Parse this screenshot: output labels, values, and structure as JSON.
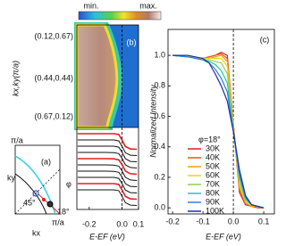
{
  "chart_data": [
    {
      "type": "edc",
      "label": "(b)",
      "colorbar_labels": [
        "min.",
        "max."
      ],
      "k_labels": [
        "(0.12,0.67)",
        "(0.44,0.44)",
        "(0.67,0.12)"
      ],
      "ylabel": "kx,ky(π/a)",
      "xlabel": "E-EF (eV)",
      "xlim": [
        -0.275,
        0.1
      ],
      "xticks": [
        -0.2,
        {
          "value": 0,
          "label": "0.0"
        },
        0.1
      ],
      "x": [
        -0.27,
        -0.2,
        -0.15,
        -0.1,
        -0.05,
        -0.02,
        0,
        0.02,
        0.05,
        0.09
      ],
      "series": [
        {
          "color": "#e02020",
          "values": [
            1.0,
            1.0,
            1.0,
            1.0,
            1.0,
            0.95,
            0.6,
            0.2,
            0.05,
            0.03
          ]
        },
        {
          "color": "#111111",
          "values": [
            1.0,
            1.0,
            1.0,
            1.0,
            1.0,
            0.94,
            0.6,
            0.2,
            0.05,
            0.03
          ]
        },
        {
          "color": "#111111",
          "values": [
            1.0,
            1.0,
            1.0,
            1.0,
            1.0,
            0.94,
            0.62,
            0.22,
            0.05,
            0.03
          ]
        },
        {
          "color": "#111111",
          "values": [
            1.0,
            1.0,
            1.0,
            1.0,
            0.99,
            0.93,
            0.62,
            0.22,
            0.06,
            0.03
          ]
        },
        {
          "color": "#e02020",
          "values": [
            1.0,
            1.0,
            1.0,
            1.0,
            0.99,
            0.92,
            0.63,
            0.23,
            0.06,
            0.03
          ]
        },
        {
          "color": "#111111",
          "values": [
            1.0,
            1.0,
            1.0,
            1.0,
            0.99,
            0.92,
            0.63,
            0.23,
            0.06,
            0.03
          ]
        },
        {
          "color": "#111111",
          "values": [
            1.0,
            1.0,
            1.0,
            1.0,
            0.99,
            0.93,
            0.62,
            0.22,
            0.05,
            0.03
          ]
        },
        {
          "color": "#111111",
          "values": [
            1.0,
            1.0,
            1.0,
            1.0,
            1.0,
            0.94,
            0.61,
            0.21,
            0.05,
            0.03
          ]
        },
        {
          "color": "#e02020",
          "values": [
            1.0,
            1.0,
            1.0,
            1.0,
            1.0,
            0.95,
            0.6,
            0.2,
            0.05,
            0.03
          ]
        },
        {
          "color": "#111111",
          "values": [
            1.0,
            1.0,
            1.0,
            1.0,
            1.0,
            0.95,
            0.6,
            0.2,
            0.05,
            0.03
          ]
        }
      ]
    },
    {
      "type": "line",
      "label": "(c)",
      "ylabel": "Normalized Intensity",
      "xlabel": "E-EF (eV)",
      "legend_title": "φ=18°",
      "xlim": [
        -0.215,
        0.135
      ],
      "xticks": [
        -0.2,
        -0.1,
        {
          "value": 0,
          "label": "0.0"
        },
        0.1
      ],
      "ylim": [
        -0.04,
        1.17
      ],
      "yticks": [
        {
          "value": 0,
          "label": "0.0"
        },
        0.2,
        0.4,
        0.6,
        0.8,
        {
          "value": 1,
          "label": "1.0"
        }
      ],
      "x": [
        -0.2,
        -0.15,
        -0.1,
        -0.08,
        -0.06,
        -0.04,
        -0.02,
        0,
        0.02,
        0.04,
        0.06,
        0.08,
        0.1
      ],
      "series": [
        {
          "name": "30K",
          "color": "#e41a1c",
          "values": [
            1.0,
            0.99,
            0.98,
            0.99,
            1.0,
            1.02,
            1.0,
            0.55,
            0.1,
            0.02,
            0.01,
            0.0,
            0.0
          ]
        },
        {
          "name": "40K",
          "color": "#e8541b",
          "values": [
            1.0,
            0.99,
            0.98,
            0.99,
            1.0,
            1.01,
            0.98,
            0.55,
            0.12,
            0.03,
            0.01,
            0.0,
            0.0
          ]
        },
        {
          "name": "50K",
          "color": "#f39c12",
          "values": [
            1.0,
            0.99,
            0.98,
            0.98,
            0.99,
            1.0,
            0.96,
            0.54,
            0.13,
            0.03,
            0.01,
            0.01,
            0.0
          ]
        },
        {
          "name": "60K",
          "color": "#e8d51e",
          "values": [
            1.0,
            0.99,
            0.98,
            0.98,
            0.98,
            0.98,
            0.93,
            0.53,
            0.15,
            0.04,
            0.02,
            0.01,
            0.0
          ]
        },
        {
          "name": "70K",
          "color": "#8fd14f",
          "values": [
            1.0,
            0.99,
            0.97,
            0.97,
            0.96,
            0.95,
            0.88,
            0.52,
            0.17,
            0.05,
            0.02,
            0.01,
            0.0
          ]
        },
        {
          "name": "80K",
          "color": "#22c7b8",
          "values": [
            1.0,
            0.99,
            0.97,
            0.96,
            0.94,
            0.9,
            0.82,
            0.51,
            0.2,
            0.06,
            0.02,
            0.01,
            0.0
          ]
        },
        {
          "name": "90K",
          "color": "#2e7fd6",
          "values": [
            1.0,
            0.99,
            0.97,
            0.95,
            0.91,
            0.85,
            0.76,
            0.5,
            0.22,
            0.07,
            0.02,
            0.01,
            0.0
          ]
        },
        {
          "name": "100K",
          "color": "#1c2fa0",
          "values": [
            1.0,
            1.0,
            0.98,
            0.95,
            0.88,
            0.8,
            0.7,
            0.5,
            0.25,
            0.08,
            0.02,
            0.01,
            0.0
          ]
        }
      ]
    }
  ],
  "diagram_a": {
    "label": "(a)",
    "pi_top": "π/a",
    "pi_right": "π/a",
    "ky": "ky",
    "kx": "kx",
    "angle_45": "45°",
    "angle_18": "18°",
    "phi": "φ"
  }
}
